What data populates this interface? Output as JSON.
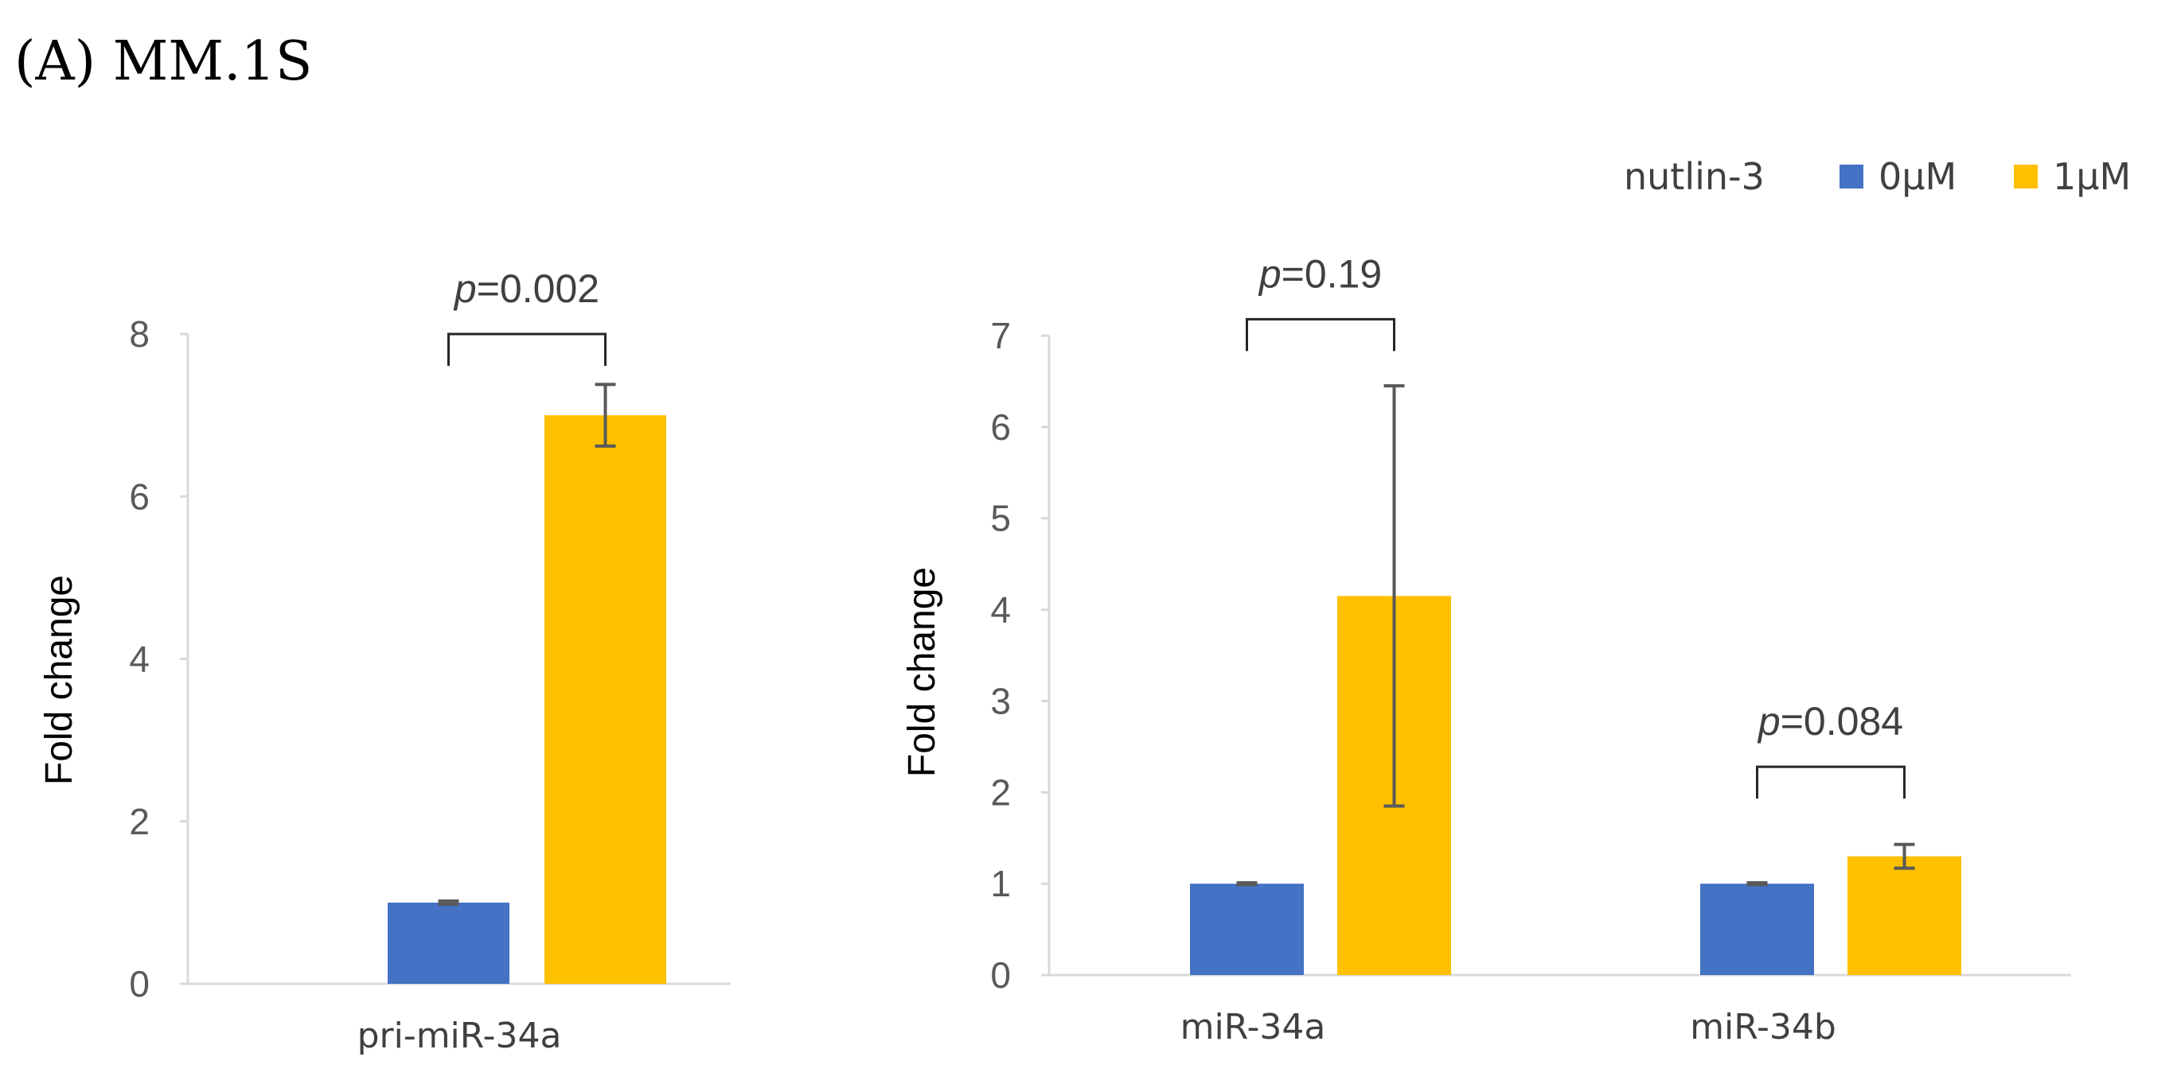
{
  "figure": {
    "panel_title": "(A) MM.1S",
    "legend": {
      "title": "nutlin-3",
      "entries": [
        {
          "label": "0μM",
          "color": "#4472C4"
        },
        {
          "label": "1μM",
          "color": "#FFC000"
        }
      ]
    }
  },
  "chart_data": [
    {
      "type": "bar",
      "title": "",
      "xlabel": "",
      "ylabel": "Fold change",
      "ylim": [
        0,
        8
      ],
      "yticks": [
        0,
        2,
        4,
        6,
        8
      ],
      "grid": false,
      "categories": [
        "pri-miR-34a"
      ],
      "series": [
        {
          "name": "0μM",
          "color": "#4472C4",
          "values": [
            1.0
          ],
          "errors": [
            0.02
          ]
        },
        {
          "name": "1μM",
          "color": "#FFC000",
          "values": [
            7.0
          ],
          "errors": [
            0.38
          ]
        }
      ],
      "annotations": [
        {
          "category": 0,
          "p_symbol": "p",
          "p_text": "=0.002",
          "bracket_y": 8.0
        }
      ]
    },
    {
      "type": "bar",
      "title": "",
      "xlabel": "",
      "ylabel": "Fold change",
      "ylim": [
        0,
        7
      ],
      "yticks": [
        0,
        1,
        2,
        3,
        4,
        5,
        6,
        7
      ],
      "grid": false,
      "categories": [
        "miR-34a",
        "miR-34b"
      ],
      "series": [
        {
          "name": "0μM",
          "color": "#4472C4",
          "values": [
            1.0,
            1.0
          ],
          "errors": [
            0.01,
            0.01
          ]
        },
        {
          "name": "1μM",
          "color": "#FFC000",
          "values": [
            4.15,
            1.3
          ],
          "errors": [
            2.3,
            0.13
          ]
        }
      ],
      "annotations": [
        {
          "category": 0,
          "p_symbol": "p",
          "p_text": "=0.19",
          "bracket_y": 7.18
        },
        {
          "category": 1,
          "p_symbol": "p",
          "p_text": "=0.084",
          "bracket_y": 2.28
        }
      ]
    }
  ]
}
